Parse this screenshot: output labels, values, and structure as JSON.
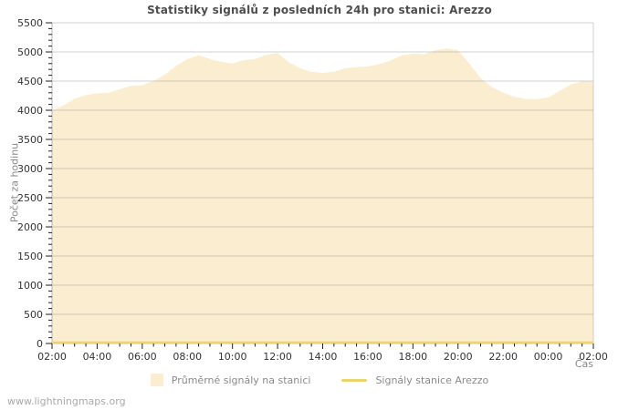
{
  "watermark": "www.lightningmaps.org",
  "chart_data": {
    "type": "area",
    "title": "Statistiky signálů z posledních 24h pro stanici: Arezzo",
    "xlabel": "Čas",
    "ylabel": "Počet za hodinu",
    "ylim": [
      0,
      5500
    ],
    "y_ticks": [
      0,
      500,
      1000,
      1500,
      2000,
      2500,
      3000,
      3500,
      4000,
      4500,
      5000,
      5500
    ],
    "y_minor_step": 100,
    "x_tick_labels": [
      "02:00",
      "04:00",
      "06:00",
      "08:00",
      "10:00",
      "12:00",
      "14:00",
      "16:00",
      "18:00",
      "20:00",
      "22:00",
      "00:00",
      "02:00"
    ],
    "x_start": "02:00",
    "x_step_minutes": 30,
    "grid": "horizontal-only",
    "legend_position": "bottom",
    "colors": {
      "grid": "#999999",
      "axis": "#b5b5b5",
      "tick": "#222222",
      "background": "#ffffff"
    },
    "series": [
      {
        "name": "Průměrné signály na stanici",
        "type": "area",
        "color": "#fbedcf",
        "values": [
          4000,
          4080,
          4200,
          4260,
          4290,
          4300,
          4360,
          4420,
          4430,
          4500,
          4610,
          4760,
          4880,
          4940,
          4880,
          4830,
          4800,
          4860,
          4880,
          4950,
          4980,
          4820,
          4720,
          4660,
          4640,
          4660,
          4720,
          4740,
          4750,
          4790,
          4850,
          4940,
          4970,
          4960,
          5030,
          5060,
          5030,
          4800,
          4550,
          4400,
          4300,
          4230,
          4195,
          4190,
          4220,
          4330,
          4440,
          4495,
          4490
        ]
      },
      {
        "name": "Signály stanice Arezzo",
        "type": "line",
        "color": "#f0d170",
        "values": [
          0,
          0,
          0,
          0,
          0,
          0,
          0,
          0,
          0,
          0,
          0,
          0,
          0,
          0,
          0,
          0,
          0,
          0,
          0,
          0,
          0,
          0,
          0,
          0,
          0,
          0,
          0,
          0,
          0,
          0,
          0,
          0,
          0,
          0,
          0,
          0,
          0,
          0,
          0,
          0,
          0,
          0,
          0,
          0,
          0,
          0,
          0,
          0,
          0
        ]
      }
    ]
  }
}
